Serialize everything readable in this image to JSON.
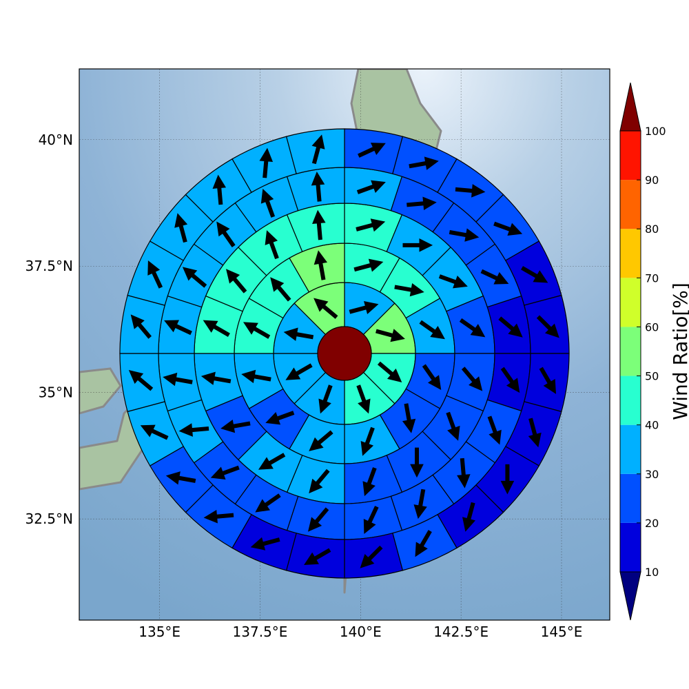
{
  "chart_data": {
    "type": "heatmap",
    "projection": "polar-sector map",
    "xlim": [
      133,
      146.2
    ],
    "ylim": [
      30.5,
      41.4
    ],
    "x_ticks": [
      {
        "value": 135,
        "label": "135°E"
      },
      {
        "value": 137.5,
        "label": "137.5°E"
      },
      {
        "value": 140,
        "label": "140°E"
      },
      {
        "value": 142.5,
        "label": "142.5°E"
      },
      {
        "value": 145,
        "label": "145°E"
      }
    ],
    "y_ticks": [
      {
        "value": 32.5,
        "label": "32.5°N"
      },
      {
        "value": 35,
        "label": "35°N"
      },
      {
        "value": 37.5,
        "label": "37.5°N"
      },
      {
        "value": 40,
        "label": "40°N"
      }
    ],
    "grid": true,
    "center": {
      "lon": 140.0,
      "lat": 35.9
    },
    "center_value": 100,
    "center_color": "#800000",
    "rings": [
      {
        "sectors": 8,
        "values": [
          35,
          52,
          42,
          42,
          38,
          35,
          32,
          50
        ]
      },
      {
        "sectors": 12,
        "values": [
          45,
          45,
          32,
          22,
          22,
          32,
          30,
          25,
          32,
          42,
          45,
          52
        ]
      },
      {
        "sectors": 16,
        "values": [
          42,
          32,
          32,
          25,
          22,
          22,
          22,
          25,
          30,
          32,
          22,
          32,
          42,
          42,
          42,
          42
        ]
      },
      {
        "sectors": 20,
        "values": [
          35,
          25,
          22,
          22,
          15,
          15,
          22,
          22,
          22,
          22,
          25,
          25,
          25,
          32,
          32,
          32,
          32,
          32,
          32,
          32
        ]
      },
      {
        "sectors": 24,
        "values": [
          25,
          25,
          22,
          25,
          15,
          15,
          15,
          15,
          15,
          15,
          22,
          15,
          15,
          15,
          25,
          22,
          32,
          32,
          32,
          32,
          32,
          32,
          32,
          32
        ]
      }
    ],
    "arrow_angles": [
      [
        75,
        105,
        130,
        160,
        200,
        240,
        280,
        310
      ],
      [
        75,
        100,
        125,
        145,
        170,
        200,
        230,
        250,
        280,
        300,
        320,
        350
      ],
      [
        75,
        90,
        110,
        125,
        140,
        160,
        180,
        200,
        220,
        240,
        260,
        280,
        300,
        320,
        340,
        355
      ],
      [
        70,
        85,
        100,
        115,
        130,
        145,
        160,
        175,
        190,
        205,
        220,
        235,
        250,
        265,
        280,
        295,
        310,
        325,
        340,
        355
      ],
      [
        65,
        80,
        95,
        110,
        120,
        135,
        150,
        165,
        180,
        195,
        210,
        225,
        240,
        255,
        265,
        280,
        295,
        310,
        320,
        335,
        345,
        355,
        5,
        15
      ]
    ],
    "colorbar": {
      "label": "Wind Ratio[%]",
      "ticks": [
        "10",
        "20",
        "30",
        "40",
        "50",
        "60",
        "70",
        "80",
        "90",
        "100"
      ],
      "levels": [
        10,
        20,
        30,
        40,
        50,
        60,
        70,
        80,
        90,
        100
      ],
      "colors": [
        "#0000dd",
        "#0050ff",
        "#00b0ff",
        "#28ffd0",
        "#7cff79",
        "#d0ff2a",
        "#ffc800",
        "#ff6400",
        "#ff1400"
      ],
      "under_color": "#000080",
      "over_color": "#800000"
    }
  }
}
